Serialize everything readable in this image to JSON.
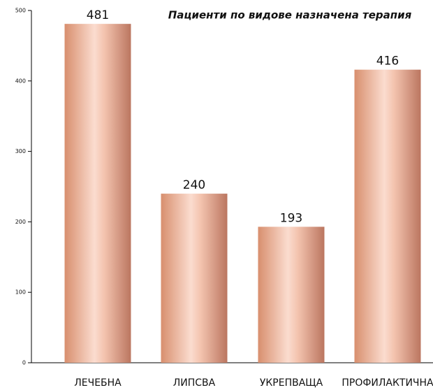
{
  "chart_data": {
    "type": "bar",
    "title": "Пациенти по видове назначена терапия",
    "categories": [
      "ЛЕЧЕБНА",
      "ЛИПСВА",
      "УКРЕПВАЩА",
      "ПРОФИЛАКТИЧНА"
    ],
    "values": [
      481,
      240,
      193,
      416
    ],
    "color": "#d99a7e",
    "ylim": [
      0,
      500
    ],
    "yticks": [
      0,
      100,
      200,
      300,
      400,
      500
    ],
    "grid": false
  }
}
